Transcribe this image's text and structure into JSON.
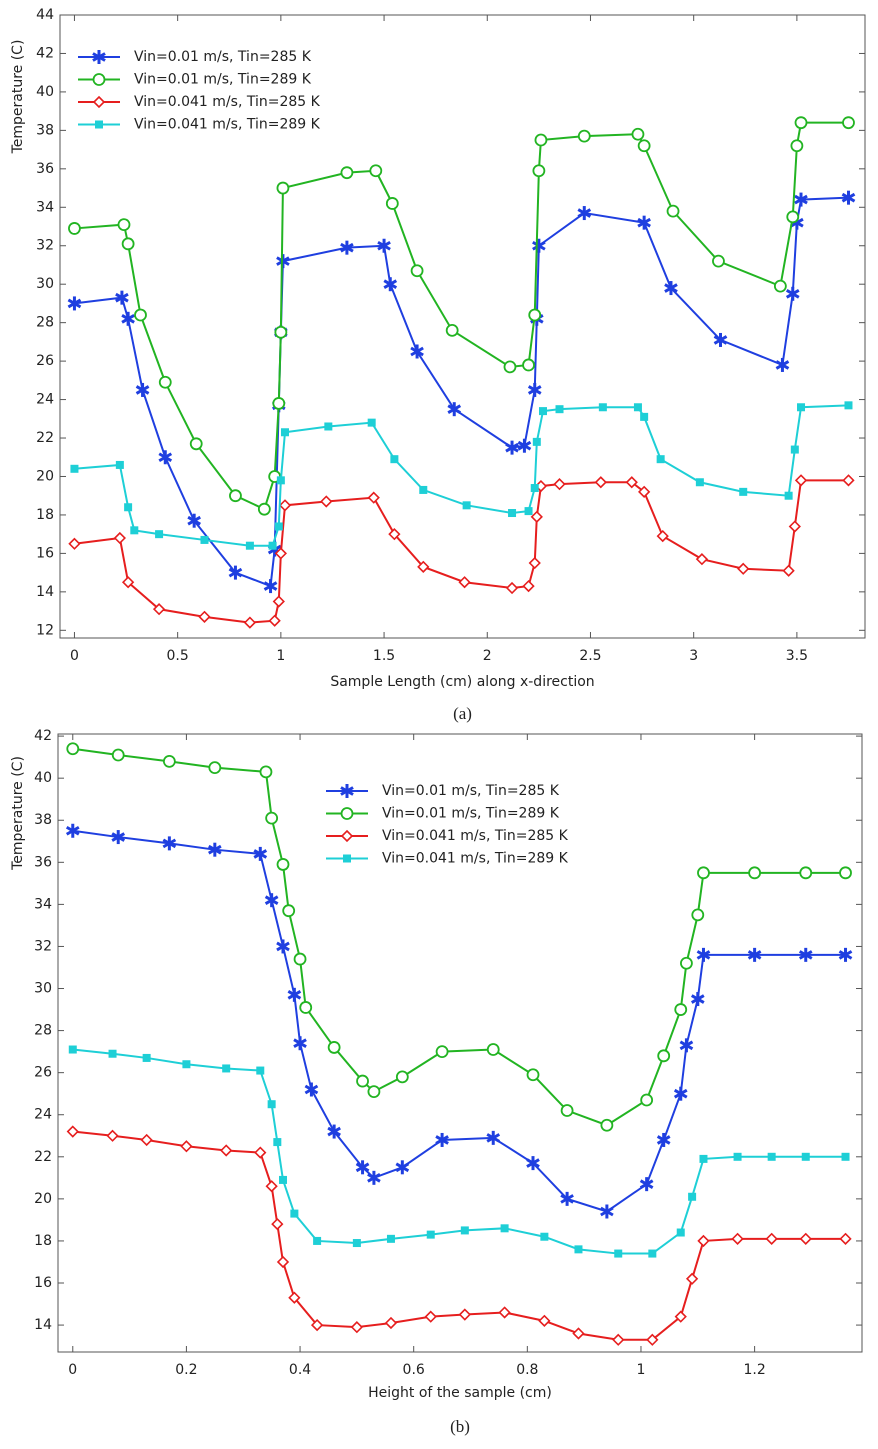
{
  "chart_data": [
    {
      "type": "line",
      "caption": "(a)",
      "x_label": "Sample Length (cm) along x-direction",
      "y_label": "Temperature (C)",
      "xlim": [
        -0.07,
        3.83
      ],
      "ylim": [
        11.6,
        44
      ],
      "xticks": [
        0,
        0.5,
        1,
        1.5,
        2,
        2.5,
        3,
        3.5
      ],
      "yticks": [
        12,
        14,
        16,
        18,
        20,
        22,
        24,
        26,
        28,
        30,
        32,
        34,
        36,
        38,
        40,
        42,
        44
      ],
      "legend": "upper left",
      "series": [
        {
          "name": "Vin=0.01 m/s, Tin=285 K",
          "color": "#1f3fe0",
          "marker": "asterisk",
          "x": [
            0,
            0.23,
            0.26,
            0.33,
            0.44,
            0.58,
            0.78,
            0.95,
            0.97,
            0.99,
            1.0,
            1.01,
            1.32,
            1.5,
            1.53,
            1.66,
            1.84,
            2.12,
            2.18,
            2.23,
            2.24,
            2.25,
            2.47,
            2.76,
            2.89,
            3.13,
            3.43,
            3.48,
            3.5,
            3.52,
            3.75
          ],
          "values": [
            29,
            29.3,
            28.2,
            24.5,
            21,
            17.7,
            15,
            14.3,
            16.2,
            23.7,
            27.5,
            31.2,
            31.9,
            32,
            30,
            26.5,
            23.5,
            21.5,
            21.6,
            24.5,
            28.2,
            32,
            33.7,
            33.2,
            29.8,
            27.1,
            25.8,
            29.5,
            33.2,
            34.4,
            34.5
          ]
        },
        {
          "name": "Vin=0.01 m/s, Tin=289 K",
          "color": "#22b422",
          "marker": "circle",
          "x": [
            0,
            0.24,
            0.26,
            0.32,
            0.44,
            0.59,
            0.78,
            0.92,
            0.97,
            0.99,
            1.0,
            1.01,
            1.32,
            1.46,
            1.54,
            1.66,
            1.83,
            2.11,
            2.2,
            2.23,
            2.25,
            2.26,
            2.47,
            2.73,
            2.76,
            2.9,
            3.12,
            3.42,
            3.48,
            3.5,
            3.52,
            3.75
          ],
          "values": [
            32.9,
            33.1,
            32.1,
            28.4,
            24.9,
            21.7,
            19,
            18.3,
            20,
            23.8,
            27.5,
            35,
            35.8,
            35.9,
            34.2,
            30.7,
            27.6,
            25.7,
            25.8,
            28.4,
            35.9,
            37.5,
            37.7,
            37.8,
            37.2,
            33.8,
            31.2,
            29.9,
            33.5,
            37.2,
            38.4,
            38.4
          ]
        },
        {
          "name": "Vin=0.041 m/s, Tin=285 K",
          "color": "#e61e1e",
          "marker": "diamond",
          "x": [
            0,
            0.22,
            0.26,
            0.41,
            0.63,
            0.85,
            0.97,
            0.99,
            1.0,
            1.02,
            1.22,
            1.45,
            1.55,
            1.69,
            1.89,
            2.12,
            2.2,
            2.23,
            2.24,
            2.26,
            2.35,
            2.55,
            2.7,
            2.76,
            2.85,
            3.04,
            3.24,
            3.46,
            3.49,
            3.52,
            3.75
          ],
          "values": [
            16.5,
            16.8,
            14.5,
            13.1,
            12.7,
            12.4,
            12.5,
            13.5,
            16,
            18.5,
            18.7,
            18.9,
            17,
            15.3,
            14.5,
            14.2,
            14.3,
            15.5,
            17.9,
            19.5,
            19.6,
            19.7,
            19.7,
            19.2,
            16.9,
            15.7,
            15.2,
            15.1,
            17.4,
            19.8,
            19.8
          ]
        },
        {
          "name": "Vin=0.041 m/s, Tin=289 K",
          "color": "#1ecfd6",
          "marker": "square",
          "x": [
            0,
            0.22,
            0.26,
            0.29,
            0.41,
            0.63,
            0.85,
            0.96,
            0.99,
            1.0,
            1.02,
            1.23,
            1.44,
            1.55,
            1.69,
            1.9,
            2.12,
            2.2,
            2.23,
            2.24,
            2.27,
            2.35,
            2.56,
            2.73,
            2.76,
            2.84,
            3.03,
            3.24,
            3.46,
            3.49,
            3.52,
            3.75
          ],
          "values": [
            20.4,
            20.6,
            18.4,
            17.2,
            17,
            16.7,
            16.4,
            16.4,
            17.4,
            19.8,
            22.3,
            22.6,
            22.8,
            20.9,
            19.3,
            18.5,
            18.1,
            18.2,
            19.4,
            21.8,
            23.4,
            23.5,
            23.6,
            23.6,
            23.1,
            20.9,
            19.7,
            19.2,
            19,
            21.4,
            23.6,
            23.7
          ]
        }
      ]
    },
    {
      "type": "line",
      "caption": "(b)",
      "x_label": "Height of the sample (cm)",
      "y_label": "Temperature (C)",
      "xlim": [
        -0.026,
        1.389
      ],
      "ylim": [
        12.72,
        42.1
      ],
      "xticks": [
        0,
        0.2,
        0.4,
        0.6,
        0.8,
        1,
        1.2
      ],
      "yticks": [
        14,
        16,
        18,
        20,
        22,
        24,
        26,
        28,
        30,
        32,
        34,
        36,
        38,
        40,
        42
      ],
      "legend": "upper center",
      "series": [
        {
          "name": "Vin=0.01 m/s, Tin=285 K",
          "color": "#1f3fe0",
          "marker": "asterisk",
          "x": [
            0,
            0.08,
            0.17,
            0.25,
            0.33,
            0.35,
            0.37,
            0.39,
            0.4,
            0.42,
            0.46,
            0.51,
            0.53,
            0.58,
            0.65,
            0.74,
            0.81,
            0.87,
            0.94,
            1.01,
            1.04,
            1.07,
            1.08,
            1.1,
            1.11,
            1.2,
            1.29,
            1.36
          ],
          "values": [
            37.5,
            37.2,
            36.9,
            36.6,
            36.4,
            34.2,
            32,
            29.7,
            27.4,
            25.2,
            23.2,
            21.5,
            21,
            21.5,
            22.8,
            22.9,
            21.7,
            20,
            19.4,
            20.7,
            22.8,
            25,
            27.3,
            29.5,
            31.6,
            31.6,
            31.6,
            31.6
          ]
        },
        {
          "name": "Vin=0.01 m/s, Tin=289 K",
          "color": "#22b422",
          "marker": "circle",
          "x": [
            0,
            0.08,
            0.17,
            0.25,
            0.34,
            0.35,
            0.37,
            0.38,
            0.4,
            0.41,
            0.46,
            0.51,
            0.53,
            0.58,
            0.65,
            0.74,
            0.81,
            0.87,
            0.94,
            1.01,
            1.04,
            1.07,
            1.08,
            1.1,
            1.11,
            1.2,
            1.29,
            1.36
          ],
          "values": [
            41.4,
            41.1,
            40.8,
            40.5,
            40.3,
            38.1,
            35.9,
            33.7,
            31.4,
            29.1,
            27.2,
            25.6,
            25.1,
            25.8,
            27,
            27.1,
            25.9,
            24.2,
            23.5,
            24.7,
            26.8,
            29,
            31.2,
            33.5,
            35.5,
            35.5,
            35.5,
            35.5
          ]
        },
        {
          "name": "Vin=0.041 m/s, Tin=285 K",
          "color": "#e61e1e",
          "marker": "diamond",
          "x": [
            0,
            0.07,
            0.13,
            0.2,
            0.27,
            0.33,
            0.35,
            0.36,
            0.37,
            0.39,
            0.43,
            0.5,
            0.56,
            0.63,
            0.69,
            0.76,
            0.83,
            0.89,
            0.96,
            1.02,
            1.07,
            1.09,
            1.11,
            1.17,
            1.23,
            1.29,
            1.36
          ],
          "values": [
            23.2,
            23,
            22.8,
            22.5,
            22.3,
            22.2,
            20.6,
            18.8,
            17,
            15.3,
            14,
            13.9,
            14.1,
            14.4,
            14.5,
            14.6,
            14.2,
            13.6,
            13.3,
            13.3,
            14.4,
            16.2,
            18,
            18.1,
            18.1,
            18.1,
            18.1
          ]
        },
        {
          "name": "Vin=0.041 m/s, Tin=289 K",
          "color": "#1ecfd6",
          "marker": "square",
          "x": [
            0,
            0.07,
            0.13,
            0.2,
            0.27,
            0.33,
            0.35,
            0.36,
            0.37,
            0.39,
            0.43,
            0.5,
            0.56,
            0.63,
            0.69,
            0.76,
            0.83,
            0.89,
            0.96,
            1.02,
            1.07,
            1.09,
            1.11,
            1.17,
            1.23,
            1.29,
            1.36
          ],
          "values": [
            27.1,
            26.9,
            26.7,
            26.4,
            26.2,
            26.1,
            24.5,
            22.7,
            20.9,
            19.3,
            18,
            17.9,
            18.1,
            18.3,
            18.5,
            18.6,
            18.2,
            17.6,
            17.4,
            17.4,
            18.4,
            20.1,
            21.9,
            22,
            22,
            22,
            22
          ]
        }
      ]
    }
  ]
}
